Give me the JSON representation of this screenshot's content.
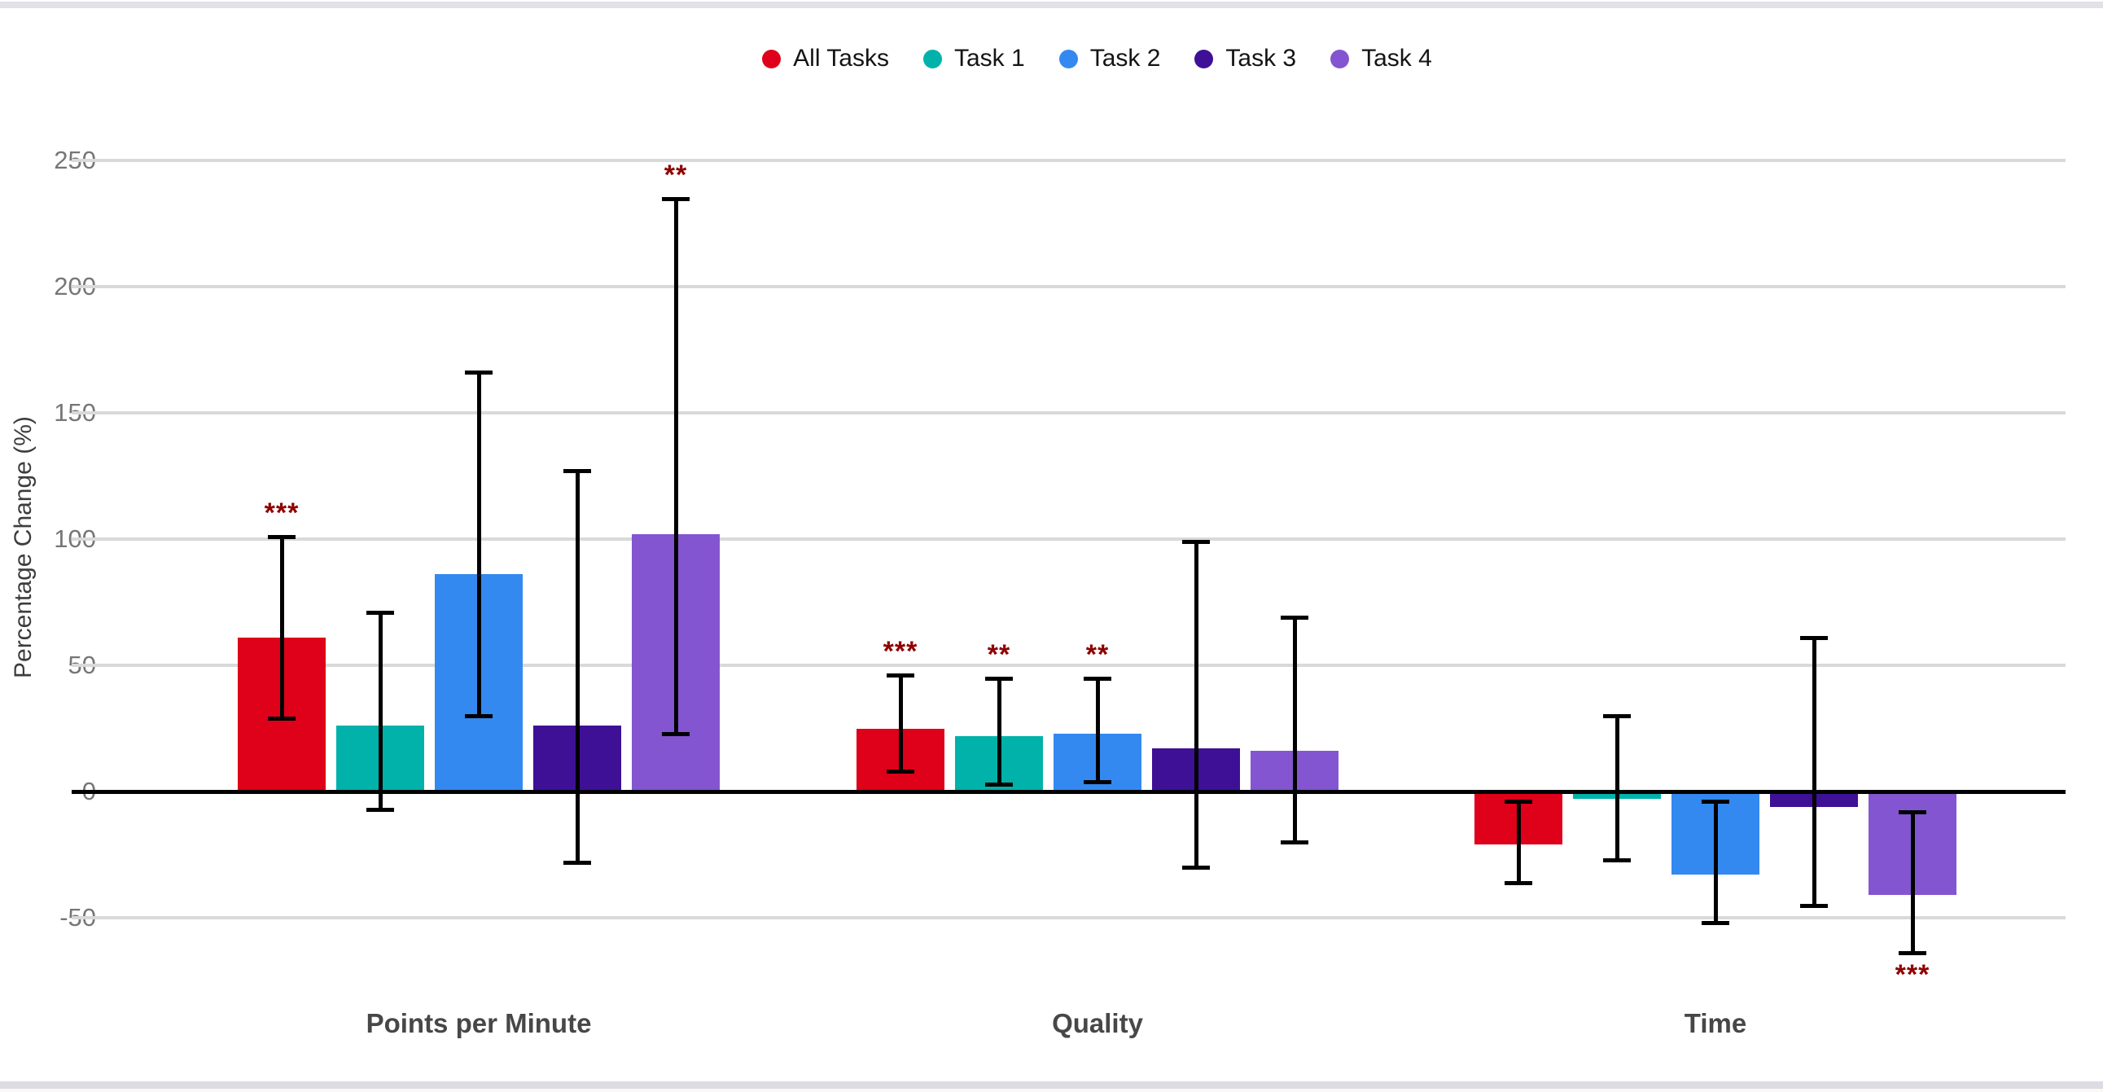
{
  "page": {
    "background": "#ffffff",
    "top_strip_color": "#e1e1e7",
    "bottom_strip_color": "#dcdce2",
    "footer_fill_color": "#faf9f6"
  },
  "legend": {
    "items": [
      {
        "label": "All Tasks",
        "color": "#df0019"
      },
      {
        "label": "Task 1",
        "color": "#00b2a9"
      },
      {
        "label": "Task 2",
        "color": "#3389f0"
      },
      {
        "label": "Task 3",
        "color": "#3e1096"
      },
      {
        "label": "Task 4",
        "color": "#8355d1"
      }
    ]
  },
  "chart_data": {
    "type": "bar",
    "title": "",
    "xlabel": "",
    "ylabel": "Percentage Change (%)",
    "ylim": [
      -75,
      260
    ],
    "yticks": [
      250,
      200,
      150,
      100,
      50,
      0,
      -50
    ],
    "grid": true,
    "legend_position": "top",
    "categories": [
      "Points per Minute",
      "Quality",
      "Time"
    ],
    "series": [
      {
        "name": "All Tasks",
        "color": "#df0019",
        "values": [
          61,
          25,
          -21
        ],
        "error_low": [
          29,
          8,
          -36
        ],
        "error_high": [
          101,
          46,
          -4
        ],
        "significance": [
          "***",
          "***",
          ""
        ]
      },
      {
        "name": "Task 1",
        "color": "#00b2a9",
        "values": [
          26,
          22,
          -3
        ],
        "error_low": [
          -7,
          3,
          -27
        ],
        "error_high": [
          71,
          45,
          30
        ],
        "significance": [
          "",
          "**",
          ""
        ]
      },
      {
        "name": "Task 2",
        "color": "#3389f0",
        "values": [
          86,
          23,
          -33
        ],
        "error_low": [
          30,
          4,
          -52
        ],
        "error_high": [
          166,
          45,
          -4
        ],
        "significance": [
          "",
          "**",
          ""
        ]
      },
      {
        "name": "Task 3",
        "color": "#3e1096",
        "values": [
          26,
          17,
          -6
        ],
        "error_low": [
          -28,
          -30,
          -45
        ],
        "error_high": [
          127,
          99,
          61
        ],
        "significance": [
          "",
          "",
          ""
        ]
      },
      {
        "name": "Task 4",
        "color": "#8355d1",
        "values": [
          102,
          16,
          -41
        ],
        "error_low": [
          23,
          -20,
          -64
        ],
        "error_high": [
          235,
          69,
          -8
        ],
        "significance": [
          "**",
          "",
          "***"
        ]
      }
    ],
    "significance_color": "#8f0000",
    "error_bar_color": "#000000",
    "gridline_color": "#d9d9d9",
    "zero_line_color": "#000000",
    "tick_label_color": "#767676",
    "axis_title_color": "#3c3c3c",
    "category_label_color": "#474747"
  }
}
